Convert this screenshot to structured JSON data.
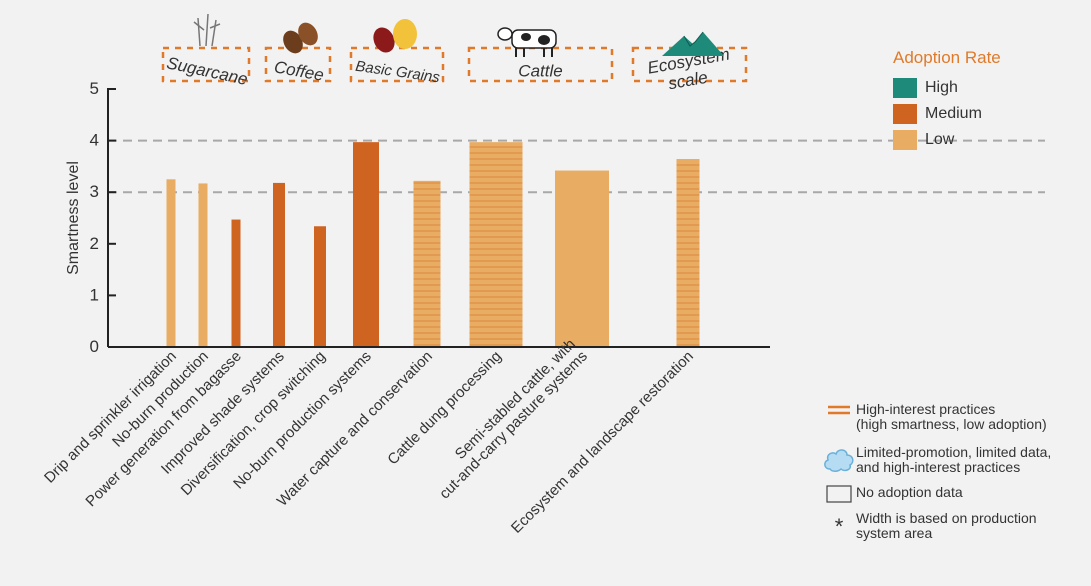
{
  "chart_data": {
    "type": "bar",
    "ylabel": "Smartness level",
    "ylim": [
      0,
      5
    ],
    "yticks": [
      "0",
      "1",
      "2",
      "3",
      "4",
      "5"
    ],
    "reference_lines": [
      3,
      4
    ],
    "groups": [
      "Sugarcane",
      "Coffee",
      "Basic Grains",
      "Cattle",
      "Ecosystem scale"
    ],
    "categories": [
      "Drip and sprinkler irrigation",
      "No-burn production",
      "Power generation from bagasse",
      "Improved shade systems",
      "Diversification, crop switching",
      "No-burn production systems",
      "Water capture and conservation",
      "Cattle dung processing",
      "Semi-stabled cattle, with\ncut-and-carry pasture systems",
      "Ecosystem and landscape restoration"
    ],
    "values": [
      3.25,
      3.17,
      2.47,
      3.18,
      2.34,
      3.97,
      3.22,
      3.97,
      3.42,
      3.64
    ],
    "adoption": [
      "Low",
      "Low",
      "Medium",
      "Medium",
      "Medium",
      "Medium",
      "Low",
      "Low",
      "Low",
      "Low"
    ],
    "high_interest": [
      false,
      false,
      false,
      false,
      false,
      false,
      true,
      true,
      false,
      true
    ],
    "colors": {
      "High": "#1e8b7a",
      "Medium": "#cf6421",
      "Low": "#e9ac63",
      "accent": "#e07a29",
      "hatch": "#d9893c"
    }
  },
  "legend": {
    "title": "Adoption Rate",
    "items": [
      "High",
      "Medium",
      "Low"
    ]
  },
  "notes": [
    {
      "icon": "double-line-icon",
      "text": "High-interest practices\n(high smartness, low adoption)"
    },
    {
      "icon": "cloud-icon",
      "text": "Limited-promotion, limited data,\nand high-interest practices"
    },
    {
      "icon": "empty-box-icon",
      "text": "No adoption data"
    },
    {
      "icon": "asterisk-icon",
      "symbol": "*",
      "text": "Width is based on production\nsystem area"
    }
  ]
}
